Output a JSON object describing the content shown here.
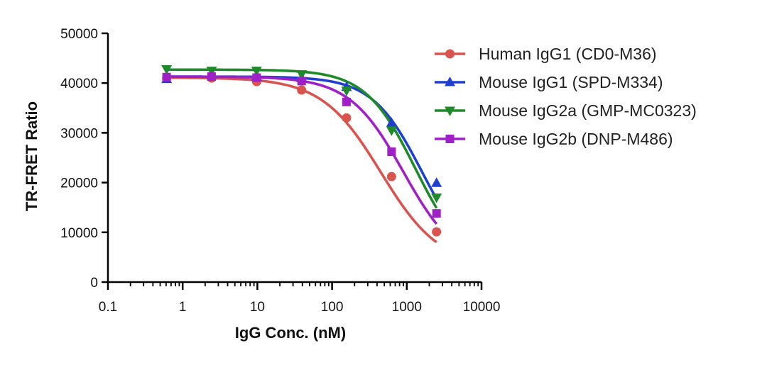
{
  "chart_data": {
    "type": "line",
    "title": "",
    "xlabel": "IgG Conc. (nM)",
    "ylabel": "TR-FRET Ratio",
    "xscale": "log",
    "xlim": [
      0.1,
      10000
    ],
    "ylim": [
      0,
      50000
    ],
    "x_ticks": [
      0.1,
      1,
      10,
      100,
      1000,
      10000
    ],
    "x_tick_labels": [
      "0.1",
      "1",
      "10",
      "100",
      "1000",
      "10000"
    ],
    "y_ticks": [
      0,
      10000,
      20000,
      30000,
      40000,
      50000
    ],
    "y_tick_labels": [
      "0",
      "10000",
      "20000",
      "30000",
      "40000",
      "50000"
    ],
    "grid": false,
    "legend_position": "top-right",
    "series": [
      {
        "name": "Human IgG1 (CD0-M36)",
        "color": "#d9534f",
        "marker": "circle",
        "x": [
          0.61,
          2.44,
          9.77,
          39.1,
          156,
          625,
          2500
        ],
        "y": [
          41000,
          41000,
          40300,
          38600,
          33000,
          21200,
          10100
        ],
        "fit": {
          "top": 41100,
          "bottom": 3000,
          "ec50": 450,
          "hill": 1.1
        }
      },
      {
        "name": "Mouse IgG1 (SPD-M334)",
        "color": "#1f3fd1",
        "marker": "triangle-up",
        "x": [
          0.61,
          2.44,
          9.77,
          39.1,
          156,
          625,
          2500
        ],
        "y": [
          40800,
          41500,
          41300,
          41000,
          39200,
          32000,
          19900
        ],
        "fit": {
          "top": 41300,
          "bottom": 3000,
          "ec50": 1600,
          "hill": 1.3
        }
      },
      {
        "name": "Mouse IgG2a (GMP-MC0323)",
        "color": "#1e8a2a",
        "marker": "triangle-down",
        "x": [
          0.61,
          2.44,
          9.77,
          39.1,
          156,
          625,
          2500
        ],
        "y": [
          42800,
          42500,
          42500,
          41800,
          38500,
          30500,
          17000
        ],
        "fit": {
          "top": 42700,
          "bottom": 3000,
          "ec50": 1300,
          "hill": 1.3
        }
      },
      {
        "name": "Mouse IgG2b (DNP-M486)",
        "color": "#a020c8",
        "marker": "square",
        "x": [
          0.61,
          2.44,
          9.77,
          39.1,
          156,
          625,
          2500
        ],
        "y": [
          41200,
          41300,
          41100,
          40400,
          36200,
          26200,
          13800
        ],
        "fit": {
          "top": 41300,
          "bottom": 3000,
          "ec50": 900,
          "hill": 1.2
        }
      }
    ]
  }
}
